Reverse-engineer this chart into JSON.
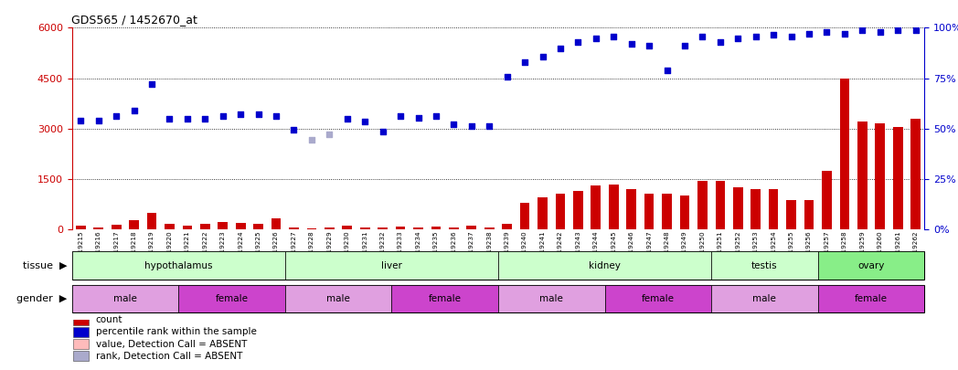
{
  "title": "GDS565 / 1452670_at",
  "samples": [
    "GSM19215",
    "GSM19216",
    "GSM19217",
    "GSM19218",
    "GSM19219",
    "GSM19220",
    "GSM19221",
    "GSM19222",
    "GSM19223",
    "GSM19224",
    "GSM19225",
    "GSM19226",
    "GSM19227",
    "GSM19228",
    "GSM19229",
    "GSM19230",
    "GSM19231",
    "GSM19232",
    "GSM19233",
    "GSM19234",
    "GSM19235",
    "GSM19236",
    "GSM19237",
    "GSM19238",
    "GSM19239",
    "GSM19240",
    "GSM19241",
    "GSM19242",
    "GSM19243",
    "GSM19244",
    "GSM19245",
    "GSM19246",
    "GSM19247",
    "GSM19248",
    "GSM19249",
    "GSM19250",
    "GSM19251",
    "GSM19252",
    "GSM19253",
    "GSM19254",
    "GSM19255",
    "GSM19256",
    "GSM19257",
    "GSM19258",
    "GSM19259",
    "GSM19260",
    "GSM19261",
    "GSM19262"
  ],
  "bar_values": [
    120,
    70,
    130,
    280,
    490,
    155,
    120,
    155,
    230,
    195,
    175,
    340,
    45,
    40,
    55,
    110,
    70,
    70,
    90,
    60,
    90,
    70,
    110,
    65,
    170,
    800,
    950,
    1050,
    1150,
    1300,
    1330,
    1200,
    1050,
    1050,
    1000,
    1450,
    1430,
    1250,
    1200,
    1200,
    860,
    860,
    1750,
    4500,
    3200,
    3150,
    3050,
    3300
  ],
  "bar_absent": [
    false,
    false,
    false,
    false,
    false,
    false,
    false,
    false,
    false,
    false,
    false,
    false,
    false,
    false,
    false,
    false,
    false,
    false,
    false,
    false,
    false,
    false,
    false,
    false,
    false,
    false,
    false,
    false,
    false,
    false,
    false,
    false,
    false,
    false,
    false,
    false,
    false,
    false,
    false,
    false,
    false,
    false,
    false,
    false,
    false,
    false,
    false,
    false
  ],
  "dot_values": [
    3250,
    3250,
    3380,
    3550,
    4330,
    3280,
    3280,
    3280,
    3380,
    3430,
    3430,
    3380,
    2960,
    null,
    null,
    3280,
    3220,
    2920,
    3380,
    3320,
    3380,
    3120,
    3080,
    3080,
    4530,
    4980,
    5130,
    5380,
    5580,
    5680,
    5730,
    5530,
    5480,
    4730,
    5480,
    5730,
    5580,
    5680,
    5730,
    5780,
    5730,
    5830,
    5880,
    5830,
    5930,
    5880,
    5930,
    5930
  ],
  "dot_absent_values": [
    null,
    null,
    null,
    null,
    null,
    null,
    null,
    null,
    null,
    null,
    null,
    null,
    null,
    2680,
    2830,
    null,
    null,
    null,
    null,
    null,
    null,
    null,
    null,
    null,
    null,
    null,
    null,
    null,
    null,
    null,
    null,
    null,
    null,
    null,
    null,
    null,
    null,
    null,
    null,
    null,
    null,
    null,
    null,
    null,
    null,
    null,
    null,
    null
  ],
  "ylim_left": [
    0,
    6000
  ],
  "ylim_right": [
    0,
    100
  ],
  "yticks_left": [
    0,
    1500,
    3000,
    4500,
    6000
  ],
  "yticks_right": [
    0,
    25,
    50,
    75,
    100
  ],
  "bar_color": "#cc0000",
  "bar_absent_color": "#ffaaaa",
  "dot_color": "#0000cc",
  "dot_absent_color": "#aaaacc",
  "tissue_groups": [
    {
      "label": "hypothalamus",
      "start": 0,
      "end": 12,
      "color": "#ccffcc"
    },
    {
      "label": "liver",
      "start": 12,
      "end": 24,
      "color": "#ccffcc"
    },
    {
      "label": "kidney",
      "start": 24,
      "end": 36,
      "color": "#ccffcc"
    },
    {
      "label": "testis",
      "start": 36,
      "end": 42,
      "color": "#ccffcc"
    },
    {
      "label": "ovary",
      "start": 42,
      "end": 48,
      "color": "#88ee88"
    }
  ],
  "gender_groups": [
    {
      "label": "male",
      "start": 0,
      "end": 6,
      "color": "#e0a0e0"
    },
    {
      "label": "female",
      "start": 6,
      "end": 12,
      "color": "#cc44cc"
    },
    {
      "label": "male",
      "start": 12,
      "end": 18,
      "color": "#e0a0e0"
    },
    {
      "label": "female",
      "start": 18,
      "end": 24,
      "color": "#cc44cc"
    },
    {
      "label": "male",
      "start": 24,
      "end": 30,
      "color": "#e0a0e0"
    },
    {
      "label": "female",
      "start": 30,
      "end": 36,
      "color": "#cc44cc"
    },
    {
      "label": "male",
      "start": 36,
      "end": 42,
      "color": "#e0a0e0"
    },
    {
      "label": "female",
      "start": 42,
      "end": 48,
      "color": "#cc44cc"
    }
  ],
  "legend_items": [
    {
      "color": "#cc0000",
      "label": "count"
    },
    {
      "color": "#0000cc",
      "label": "percentile rank within the sample"
    },
    {
      "color": "#ffbbbb",
      "label": "value, Detection Call = ABSENT"
    },
    {
      "color": "#aaaacc",
      "label": "rank, Detection Call = ABSENT"
    }
  ],
  "fig_width": 10.48,
  "fig_height": 4.05,
  "dpi": 100
}
